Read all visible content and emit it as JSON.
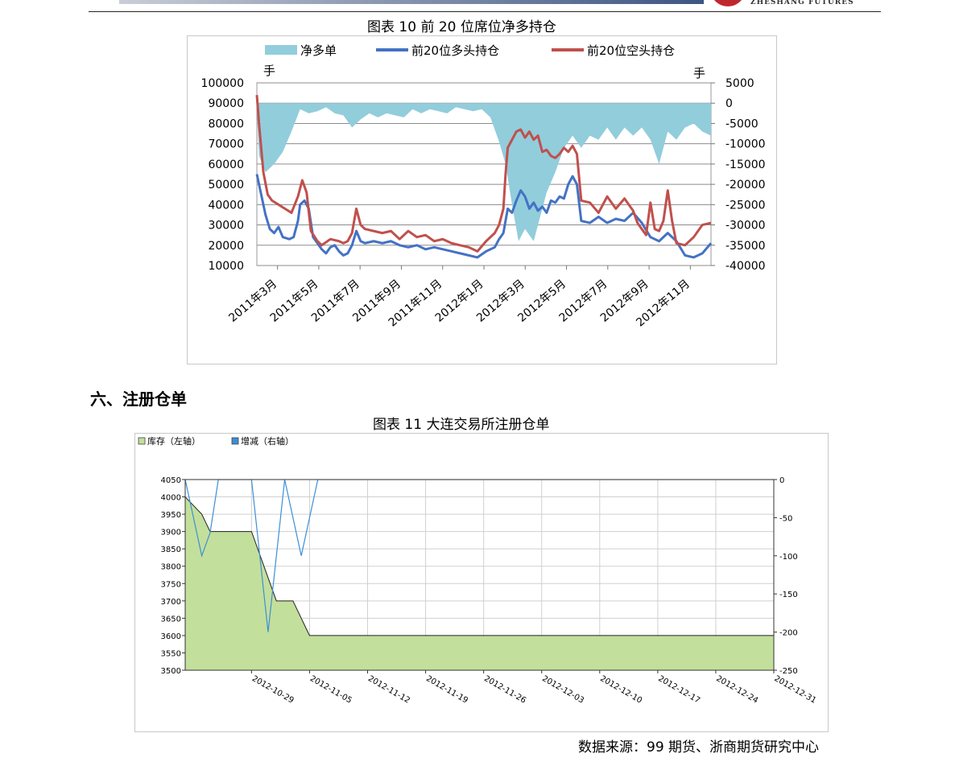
{
  "header": {
    "logo_text": "ZHESHANG FUTURES"
  },
  "figure10": {
    "caption": "图表 10  前 20 位席位净多持仓"
  },
  "section6": {
    "heading": "六、注册仓单"
  },
  "figure11": {
    "caption": "图表 11  大连交易所注册仓单"
  },
  "footer": {
    "source": "数据来源：99 期货、浙商期货研究中心"
  },
  "chart_data": [
    {
      "type": "line",
      "title": "",
      "unit_left": "手",
      "unit_right": "手",
      "left_axis": {
        "ticks": [
          100000,
          90000,
          80000,
          70000,
          60000,
          50000,
          40000,
          30000,
          20000,
          10000
        ],
        "ylim": [
          10000,
          100000
        ]
      },
      "right_axis": {
        "ticks": [
          5000,
          0,
          -5000,
          -10000,
          -15000,
          -20000,
          -25000,
          -30000,
          -35000,
          -40000
        ],
        "ylim": [
          -40000,
          5000
        ]
      },
      "x_tick_labels": [
        "2011年3月",
        "2011年5月",
        "2011年7月",
        "2011年9月",
        "2011年11月",
        "2012年1月",
        "2012年3月",
        "2012年5月",
        "2012年7月",
        "2012年9月",
        "2012年11月"
      ],
      "x_range": [
        0,
        21
      ],
      "series": [
        {
          "name": "净多单",
          "kind": "area",
          "axis": "right",
          "color": "#92cddc",
          "points": [
            [
              0,
              -2000
            ],
            [
              0.1,
              -13000
            ],
            [
              0.4,
              -17000
            ],
            [
              0.8,
              -15000
            ],
            [
              1.2,
              -12000
            ],
            [
              1.6,
              -7000
            ],
            [
              2.0,
              -1500
            ],
            [
              2.4,
              -2500
            ],
            [
              2.8,
              -2000
            ],
            [
              3.2,
              -1000
            ],
            [
              3.6,
              -2500
            ],
            [
              4.0,
              -3000
            ],
            [
              4.4,
              -6000
            ],
            [
              4.8,
              -4000
            ],
            [
              5.2,
              -2500
            ],
            [
              5.6,
              -3500
            ],
            [
              6.0,
              -2500
            ],
            [
              6.4,
              -3000
            ],
            [
              6.8,
              -3500
            ],
            [
              7.2,
              -1500
            ],
            [
              7.6,
              -2500
            ],
            [
              8.0,
              -1500
            ],
            [
              8.4,
              -2000
            ],
            [
              8.8,
              -2500
            ],
            [
              9.2,
              -1000
            ],
            [
              9.6,
              -1500
            ],
            [
              10.0,
              -2000
            ],
            [
              10.4,
              -1500
            ],
            [
              10.8,
              -3500
            ],
            [
              11.2,
              -9500
            ],
            [
              11.5,
              -15000
            ],
            [
              11.8,
              -25000
            ],
            [
              12.1,
              -34000
            ],
            [
              12.4,
              -31000
            ],
            [
              12.8,
              -34000
            ],
            [
              13.1,
              -28000
            ],
            [
              13.4,
              -22000
            ],
            [
              13.8,
              -17000
            ],
            [
              14.2,
              -11000
            ],
            [
              14.6,
              -8000
            ],
            [
              15.0,
              -11000
            ],
            [
              15.4,
              -8000
            ],
            [
              15.8,
              -9000
            ],
            [
              16.2,
              -6000
            ],
            [
              16.6,
              -9000
            ],
            [
              17.0,
              -6000
            ],
            [
              17.4,
              -8000
            ],
            [
              17.8,
              -6000
            ],
            [
              18.2,
              -9000
            ],
            [
              18.6,
              -15000
            ],
            [
              19.0,
              -7000
            ],
            [
              19.4,
              -9000
            ],
            [
              19.8,
              -6000
            ],
            [
              20.2,
              -5000
            ],
            [
              20.6,
              -7000
            ],
            [
              21,
              -8000
            ]
          ]
        },
        {
          "name": "前20位多头持仓",
          "kind": "line",
          "axis": "left",
          "color": "#4472c4",
          "points": [
            [
              0,
              55000
            ],
            [
              0.2,
              45000
            ],
            [
              0.4,
              35000
            ],
            [
              0.6,
              28000
            ],
            [
              0.8,
              26000
            ],
            [
              1.0,
              29000
            ],
            [
              1.2,
              24000
            ],
            [
              1.5,
              23000
            ],
            [
              1.7,
              24000
            ],
            [
              1.9,
              32000
            ],
            [
              2.0,
              40000
            ],
            [
              2.2,
              42000
            ],
            [
              2.4,
              38000
            ],
            [
              2.6,
              24000
            ],
            [
              2.8,
              21000
            ],
            [
              3.0,
              18000
            ],
            [
              3.2,
              16000
            ],
            [
              3.4,
              19000
            ],
            [
              3.6,
              20000
            ],
            [
              3.8,
              17000
            ],
            [
              4.0,
              15000
            ],
            [
              4.2,
              16000
            ],
            [
              4.4,
              20000
            ],
            [
              4.6,
              27000
            ],
            [
              4.8,
              22000
            ],
            [
              5.0,
              21000
            ],
            [
              5.4,
              22000
            ],
            [
              5.8,
              21000
            ],
            [
              6.2,
              22000
            ],
            [
              6.6,
              20000
            ],
            [
              7.0,
              19000
            ],
            [
              7.4,
              20000
            ],
            [
              7.8,
              18000
            ],
            [
              8.2,
              19000
            ],
            [
              8.6,
              18000
            ],
            [
              9.0,
              17000
            ],
            [
              9.4,
              16000
            ],
            [
              9.8,
              15000
            ],
            [
              10.2,
              14000
            ],
            [
              10.6,
              17000
            ],
            [
              11.0,
              19000
            ],
            [
              11.2,
              23000
            ],
            [
              11.4,
              26000
            ],
            [
              11.5,
              32000
            ],
            [
              11.6,
              38000
            ],
            [
              11.8,
              36000
            ],
            [
              12.0,
              42000
            ],
            [
              12.2,
              47000
            ],
            [
              12.4,
              44000
            ],
            [
              12.6,
              38000
            ],
            [
              12.8,
              41000
            ],
            [
              13.0,
              37000
            ],
            [
              13.2,
              39000
            ],
            [
              13.4,
              36000
            ],
            [
              13.6,
              42000
            ],
            [
              13.8,
              41000
            ],
            [
              14.0,
              44000
            ],
            [
              14.2,
              43000
            ],
            [
              14.4,
              50000
            ],
            [
              14.6,
              54000
            ],
            [
              14.8,
              50000
            ],
            [
              15.0,
              32000
            ],
            [
              15.4,
              31000
            ],
            [
              15.8,
              34000
            ],
            [
              16.2,
              31000
            ],
            [
              16.6,
              33000
            ],
            [
              17.0,
              32000
            ],
            [
              17.4,
              36000
            ],
            [
              17.8,
              31000
            ],
            [
              18.2,
              24000
            ],
            [
              18.6,
              22000
            ],
            [
              19.0,
              26000
            ],
            [
              19.4,
              22000
            ],
            [
              19.8,
              15000
            ],
            [
              20.2,
              14000
            ],
            [
              20.6,
              16000
            ],
            [
              21,
              21000
            ]
          ]
        },
        {
          "name": "前20位空头持仓",
          "kind": "line",
          "axis": "left",
          "color": "#c0504d",
          "points": [
            [
              0,
              94000
            ],
            [
              0.1,
              80000
            ],
            [
              0.3,
              56000
            ],
            [
              0.5,
              45000
            ],
            [
              0.7,
              42000
            ],
            [
              1.0,
              40000
            ],
            [
              1.3,
              38000
            ],
            [
              1.6,
              36000
            ],
            [
              1.9,
              44000
            ],
            [
              2.1,
              52000
            ],
            [
              2.3,
              46000
            ],
            [
              2.5,
              27000
            ],
            [
              2.8,
              22000
            ],
            [
              3.0,
              20000
            ],
            [
              3.4,
              23000
            ],
            [
              3.8,
              22000
            ],
            [
              4.0,
              21000
            ],
            [
              4.2,
              22000
            ],
            [
              4.4,
              26000
            ],
            [
              4.6,
              38000
            ],
            [
              4.8,
              30000
            ],
            [
              5.0,
              28000
            ],
            [
              5.4,
              27000
            ],
            [
              5.8,
              26000
            ],
            [
              6.2,
              27000
            ],
            [
              6.6,
              23000
            ],
            [
              7.0,
              27000
            ],
            [
              7.4,
              24000
            ],
            [
              7.8,
              25000
            ],
            [
              8.2,
              22000
            ],
            [
              8.6,
              23000
            ],
            [
              9.0,
              21000
            ],
            [
              9.4,
              20000
            ],
            [
              9.8,
              19000
            ],
            [
              10.2,
              17000
            ],
            [
              10.6,
              22000
            ],
            [
              11.0,
              26000
            ],
            [
              11.2,
              30000
            ],
            [
              11.4,
              38000
            ],
            [
              11.5,
              55000
            ],
            [
              11.6,
              68000
            ],
            [
              11.8,
              72000
            ],
            [
              12.0,
              76000
            ],
            [
              12.2,
              77000
            ],
            [
              12.4,
              73000
            ],
            [
              12.6,
              76000
            ],
            [
              12.8,
              72000
            ],
            [
              13.0,
              74000
            ],
            [
              13.2,
              66000
            ],
            [
              13.4,
              67000
            ],
            [
              13.6,
              64000
            ],
            [
              13.8,
              63000
            ],
            [
              14.0,
              65000
            ],
            [
              14.2,
              68000
            ],
            [
              14.4,
              66000
            ],
            [
              14.6,
              69000
            ],
            [
              14.8,
              65000
            ],
            [
              15.0,
              42000
            ],
            [
              15.4,
              41000
            ],
            [
              15.8,
              36000
            ],
            [
              16.2,
              44000
            ],
            [
              16.6,
              38000
            ],
            [
              17.0,
              43000
            ],
            [
              17.4,
              37000
            ],
            [
              17.6,
              31000
            ],
            [
              17.8,
              28000
            ],
            [
              18.0,
              25000
            ],
            [
              18.2,
              41000
            ],
            [
              18.4,
              28000
            ],
            [
              18.6,
              27000
            ],
            [
              18.8,
              32000
            ],
            [
              19.0,
              47000
            ],
            [
              19.2,
              32000
            ],
            [
              19.4,
              21000
            ],
            [
              19.8,
              20000
            ],
            [
              20.2,
              24000
            ],
            [
              20.6,
              30000
            ],
            [
              21,
              31000
            ]
          ]
        }
      ]
    },
    {
      "type": "area",
      "title": "",
      "legend": [
        "库存（左轴）",
        "增减（右轴）"
      ],
      "x_tick_labels": [
        "2012-10-29",
        "2012-11-05",
        "2012-11-12",
        "2012-11-19",
        "2012-11-26",
        "2012-12-03",
        "2012-12-10",
        "2012-12-17",
        "2012-12-24",
        "2012-12-31"
      ],
      "x_range": [
        "2012-10-21",
        "2012-12-31"
      ],
      "left_axis": {
        "ticks": [
          4050,
          4000,
          3950,
          3900,
          3850,
          3800,
          3750,
          3700,
          3650,
          3600,
          3550,
          3500
        ],
        "ylim": [
          3500,
          4050
        ]
      },
      "right_axis": {
        "ticks": [
          0,
          -50,
          -100,
          -150,
          -200,
          -250
        ],
        "ylim": [
          -250,
          0
        ]
      },
      "series": [
        {
          "name": "库存（左轴）",
          "kind": "area",
          "axis": "left",
          "color": "#c3df9c",
          "points": [
            [
              "2012-10-21",
              4000
            ],
            [
              "2012-10-23",
              3950
            ],
            [
              "2012-10-24",
              3900
            ],
            [
              "2012-10-29",
              3900
            ],
            [
              "2012-11-01",
              3700
            ],
            [
              "2012-11-03",
              3700
            ],
            [
              "2012-11-05",
              3600
            ],
            [
              "2012-12-31",
              3600
            ]
          ]
        },
        {
          "name": "增减（右轴）",
          "kind": "line",
          "axis": "right",
          "color": "#3d8fd6",
          "points": [
            [
              "2012-10-21",
              0
            ],
            [
              "2012-10-22",
              -50
            ],
            [
              "2012-10-23",
              -100
            ],
            [
              "2012-10-24",
              -70
            ],
            [
              "2012-10-25",
              0
            ],
            [
              "2012-10-29",
              0
            ],
            [
              "2012-10-30",
              -100
            ],
            [
              "2012-10-31",
              -200
            ],
            [
              "2012-11-01",
              -100
            ],
            [
              "2012-11-02",
              0
            ],
            [
              "2012-11-03",
              -50
            ],
            [
              "2012-11-04",
              -100
            ],
            [
              "2012-11-05",
              -50
            ],
            [
              "2012-11-06",
              0
            ],
            [
              "2012-12-31",
              0
            ]
          ]
        }
      ]
    }
  ]
}
